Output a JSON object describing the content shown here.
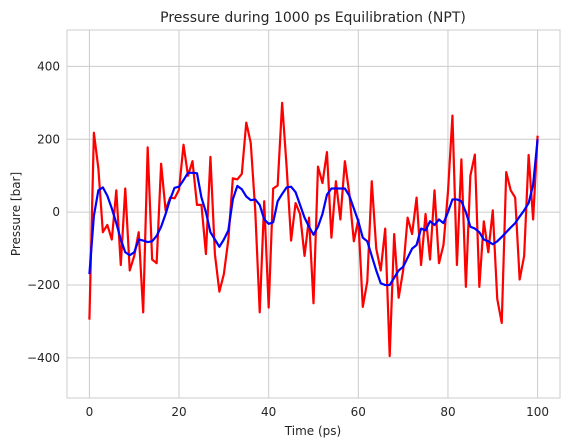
{
  "chart_data": {
    "type": "line",
    "title": "Pressure during 1000 ps Equilibration (NPT)",
    "xlabel": "Time (ps)",
    "ylabel": "Pressure [bar]",
    "xlim": [
      -5,
      105
    ],
    "ylim": [
      -510,
      500
    ],
    "x_ticks": [
      0,
      20,
      40,
      60,
      80,
      100
    ],
    "y_ticks": [
      -400,
      -200,
      0,
      200,
      400
    ],
    "grid": true,
    "legend": "none",
    "x": [
      0,
      1,
      2,
      3,
      4,
      5,
      6,
      7,
      8,
      9,
      10,
      11,
      12,
      13,
      14,
      15,
      16,
      17,
      18,
      19,
      20,
      21,
      22,
      23,
      24,
      25,
      26,
      27,
      28,
      29,
      30,
      31,
      32,
      33,
      34,
      35,
      36,
      37,
      38,
      39,
      40,
      41,
      42,
      43,
      44,
      45,
      46,
      47,
      48,
      49,
      50,
      51,
      52,
      53,
      54,
      55,
      56,
      57,
      58,
      59,
      60,
      61,
      62,
      63,
      64,
      65,
      66,
      67,
      68,
      69,
      70,
      71,
      72,
      73,
      74,
      75,
      76,
      77,
      78,
      79,
      80,
      81,
      82,
      83,
      84,
      85,
      86,
      87,
      88,
      89,
      90,
      91,
      92,
      93,
      94,
      95,
      96,
      97,
      98,
      99,
      100
    ],
    "series": [
      {
        "color": "#ff0000",
        "values": [
          -295,
          218,
          120,
          -55,
          -35,
          -75,
          60,
          -145,
          65,
          -160,
          -120,
          -55,
          -275,
          178,
          -130,
          -140,
          133,
          5,
          40,
          38,
          62,
          185,
          100,
          140,
          20,
          20,
          -115,
          152,
          -115,
          -218,
          -170,
          -75,
          93,
          90,
          105,
          246,
          190,
          5,
          -275,
          30,
          -262,
          65,
          73,
          300,
          125,
          -78,
          25,
          -5,
          -120,
          -15,
          -250,
          125,
          80,
          165,
          -70,
          85,
          -20,
          140,
          50,
          -80,
          -20,
          -260,
          -190,
          85,
          -100,
          -160,
          -45,
          -395,
          -60,
          -235,
          -160,
          -15,
          -60,
          40,
          -145,
          -5,
          -130,
          60,
          -140,
          -90,
          55,
          265,
          -145,
          145,
          -205,
          100,
          158,
          -205,
          -25,
          -110,
          5,
          -238,
          -304,
          110,
          60,
          40,
          -185,
          -120,
          157,
          -20,
          210
        ]
      },
      {
        "color": "#0000ff",
        "values": [
          -170,
          -10,
          60,
          68,
          45,
          10,
          -30,
          -75,
          -110,
          -118,
          -110,
          -75,
          -78,
          -82,
          -80,
          -65,
          -40,
          -5,
          35,
          67,
          70,
          88,
          108,
          108,
          107,
          40,
          0,
          -55,
          -75,
          -95,
          -75,
          -50,
          35,
          72,
          63,
          43,
          33,
          35,
          20,
          -20,
          -32,
          -28,
          30,
          50,
          68,
          70,
          55,
          20,
          -15,
          -40,
          -62,
          -40,
          -5,
          48,
          65,
          65,
          65,
          65,
          45,
          10,
          -25,
          -70,
          -80,
          -120,
          -160,
          -195,
          -200,
          -200,
          -180,
          -160,
          -150,
          -125,
          -100,
          -90,
          -45,
          -50,
          -25,
          -35,
          -20,
          -30,
          0,
          35,
          35,
          30,
          0,
          -40,
          -45,
          -55,
          -75,
          -80,
          -88,
          -80,
          -68,
          -55,
          -42,
          -30,
          -12,
          5,
          25,
          75,
          200
        ]
      }
    ]
  }
}
